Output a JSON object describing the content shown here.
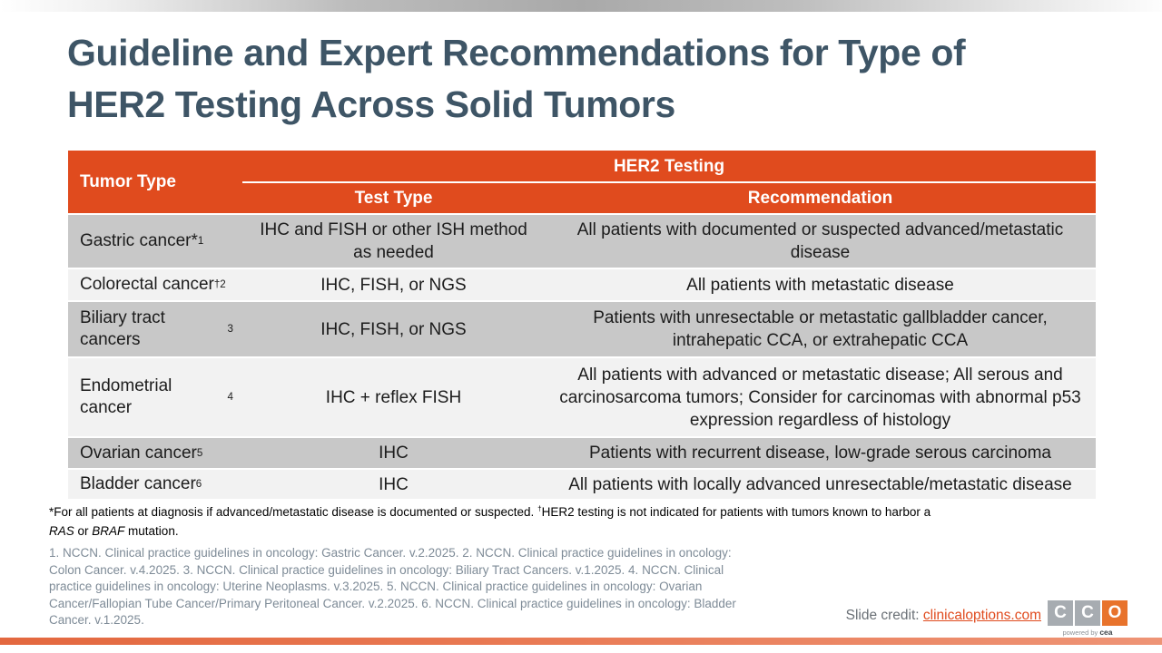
{
  "colors": {
    "accent_orange": "#e04b1e",
    "row_gray": "#c8c8c8",
    "row_light": "#f2f2f2",
    "title_text": "#3e5566",
    "reference_text": "#7e8b97",
    "bottom_bar": "#e97a54",
    "logo_gray": "#a7acb1",
    "logo_orange": "#e8732c"
  },
  "title": {
    "line1": "Guideline and Expert Recommendations for Type of",
    "line2": "HER2 Testing Across Solid Tumors"
  },
  "table": {
    "header": {
      "tumor_type": "Tumor Type",
      "her2_testing": "HER2 Testing",
      "test_type": "Test Type",
      "recommendation": "Recommendation"
    },
    "rows": [
      {
        "tumor": {
          "name": "Gastric cancer*",
          "sup": "1"
        },
        "test": "IHC and FISH or other ISH method as needed",
        "recommendation": "All patients with documented or suspected advanced/metastatic disease"
      },
      {
        "tumor": {
          "name": "Colorectal cancer",
          "sup": "†2"
        },
        "test": "IHC, FISH, or NGS",
        "recommendation": "All patients with metastatic disease"
      },
      {
        "tumor": {
          "name": "Biliary tract cancers",
          "sup": "3"
        },
        "test": "IHC, FISH, or NGS",
        "recommendation": "Patients with unresectable or metastatic gallbladder cancer, intrahepatic CCA, or extrahepatic CCA"
      },
      {
        "tumor": {
          "name": "Endometrial cancer",
          "sup": "4"
        },
        "test": "IHC + reflex FISH",
        "recommendation": "All patients with advanced or metastatic disease; All serous and carcinosarcoma tumors; Consider for carcinomas with abnormal p53 expression regardless of histology"
      },
      {
        "tumor": {
          "name": "Ovarian cancer",
          "sup": "5"
        },
        "test": "IHC",
        "recommendation": "Patients with recurrent disease, low-grade serous carcinoma"
      },
      {
        "tumor": {
          "name": "Bladder cancer",
          "sup": "6"
        },
        "test": "IHC",
        "recommendation": "All patients with locally advanced unresectable/metastatic disease"
      }
    ]
  },
  "footnote": {
    "line1_part1": "*For all patients at diagnosis if advanced/metastatic disease is documented or suspected. ",
    "line1_sup": "†",
    "line1_part2": "HER2 testing is not indicated for patients with tumors known to harbor a",
    "line2_gene1": "RAS",
    "line2_mid": " or ",
    "line2_gene2": "BRAF",
    "line2_end": " mutation."
  },
  "references": {
    "lines": [
      "1. NCCN. Clinical practice guidelines in oncology: Gastric Cancer. v.2.2025. 2. NCCN. Clinical practice guidelines in oncology:",
      "Colon Cancer. v.4.2025. 3. NCCN. Clinical practice guidelines in oncology: Biliary Tract Cancers. v.1.2025. 4. NCCN. Clinical",
      "practice guidelines in oncology: Uterine Neoplasms. v.3.2025. 5. NCCN. Clinical practice guidelines in oncology: Ovarian",
      "Cancer/Fallopian Tube Cancer/Primary Peritoneal Cancer. v.2.2025. 6. NCCN. Clinical practice guidelines in oncology: Bladder",
      "Cancer. v.1.2025."
    ]
  },
  "credit": {
    "label": "Slide credit: ",
    "link": "clinicaloptions.com"
  },
  "logo": {
    "tiles": [
      "C",
      "C",
      "O"
    ],
    "powered_by_prefix": "powered by ",
    "powered_by_brand": "cea"
  }
}
